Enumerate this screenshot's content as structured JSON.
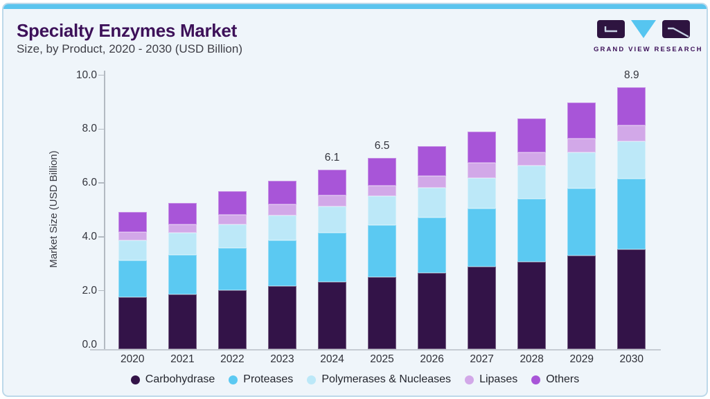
{
  "card": {
    "background": "#eff5fa",
    "border_color": "#bdd9ea",
    "accent_bar_color": "#5ac4ee"
  },
  "header": {
    "title": "Specialty Enzymes Market",
    "subtitle": "Size, by Product, 2020 - 2030 (USD Billion)",
    "title_color": "#3d1159"
  },
  "logo": {
    "text": "GRAND VIEW RESEARCH",
    "dark_color": "#2e1440",
    "accent_color": "#56c5f0"
  },
  "chart_data": {
    "type": "bar",
    "stacked": true,
    "title": "Specialty Enzymes Market Size, by Product, 2020 - 2030 (USD Billion)",
    "xlabel": "",
    "ylabel": "Market Size (USD Billion)",
    "ylim": [
      0,
      10
    ],
    "ytick_step": 2,
    "ytick_labels": [
      "0.0",
      "2.0",
      "4.0",
      "6.0",
      "8.0",
      "10.0"
    ],
    "grid": false,
    "legend_position": "bottom",
    "categories": [
      "2020",
      "2021",
      "2022",
      "2023",
      "2024",
      "2025",
      "2026",
      "2027",
      "2028",
      "2029",
      "2030"
    ],
    "series": [
      {
        "name": "Carbohydrase",
        "color": "#331348",
        "values": [
          1.77,
          1.85,
          2.01,
          2.15,
          2.28,
          2.46,
          2.6,
          2.81,
          2.97,
          3.19,
          3.4
        ]
      },
      {
        "name": "Proteases",
        "color": "#5bc9f2",
        "values": [
          1.24,
          1.35,
          1.44,
          1.55,
          1.68,
          1.76,
          1.88,
          1.96,
          2.15,
          2.28,
          2.4
        ]
      },
      {
        "name": "Polymerases & Nucleases",
        "color": "#bce8f8",
        "values": [
          0.69,
          0.75,
          0.8,
          0.84,
          0.9,
          0.98,
          1.02,
          1.05,
          1.13,
          1.23,
          1.27
        ]
      },
      {
        "name": "Lipases",
        "color": "#d2a8e8",
        "values": [
          0.29,
          0.29,
          0.31,
          0.38,
          0.36,
          0.35,
          0.4,
          0.51,
          0.45,
          0.45,
          0.53
        ]
      },
      {
        "name": "Others",
        "color": "#a855d8",
        "values": [
          0.67,
          0.73,
          0.8,
          0.8,
          0.88,
          0.95,
          1.0,
          1.07,
          1.14,
          1.24,
          1.3
        ]
      }
    ],
    "totals": {
      "2020": 4.66,
      "2021": 4.97,
      "2022": 5.36,
      "2023": 5.72,
      "2024": 6.1,
      "2025": 6.5,
      "2026": 6.9,
      "2027": 7.4,
      "2028": 7.84,
      "2029": 8.39,
      "2030": 8.9
    },
    "total_labels": {
      "2024": "6.1",
      "2025": "6.5",
      "2030": "8.9"
    }
  }
}
